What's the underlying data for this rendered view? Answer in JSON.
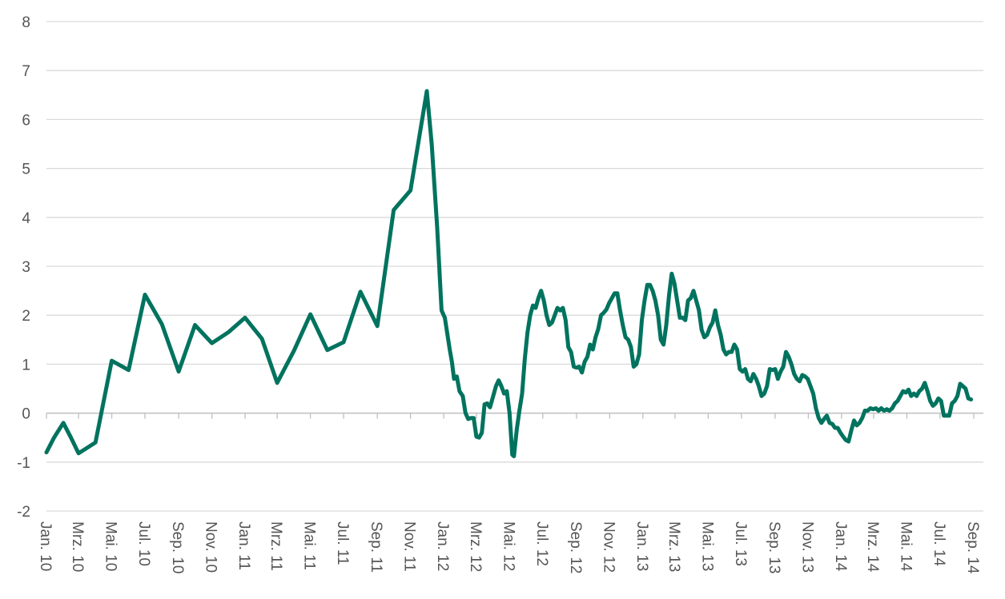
{
  "chart_data": {
    "type": "line",
    "title": "",
    "xlabel": "",
    "ylabel": "",
    "ylim": [
      -2,
      8
    ],
    "yticks": [
      -2,
      -1,
      0,
      1,
      2,
      3,
      4,
      5,
      6,
      7,
      8
    ],
    "grid": true,
    "legend": "none",
    "x_tick_labels": [
      "Jan. 10",
      "Mrz. 10",
      "Mai. 10",
      "Jul. 10",
      "Sep. 10",
      "Nov. 10",
      "Jan. 11",
      "Mrz. 11",
      "Mai. 11",
      "Jul. 11",
      "Sep. 11",
      "Nov. 11",
      "Jan. 12",
      "Mrz. 12",
      "Mai. 12",
      "Jul. 12",
      "Sep. 12",
      "Nov. 12",
      "Jan. 13",
      "Mrz. 13",
      "Mai. 13",
      "Jul. 13",
      "Sep. 13",
      "Nov. 13",
      "Jan. 14",
      "Mrz. 14",
      "Mai. 14",
      "Jul. 14",
      "Sep. 14"
    ],
    "series": [
      {
        "color": "#00735f",
        "points": [
          [
            "2010-01-01",
            -0.8
          ],
          [
            "2010-01-15",
            -0.5
          ],
          [
            "2010-02-01",
            -0.2
          ],
          [
            "2010-02-15",
            -0.5
          ],
          [
            "2010-03-01",
            -0.82
          ],
          [
            "2010-04-01",
            -0.6
          ],
          [
            "2010-05-01",
            1.07
          ],
          [
            "2010-06-01",
            0.88
          ],
          [
            "2010-07-01",
            2.42
          ],
          [
            "2010-08-01",
            1.82
          ],
          [
            "2010-09-01",
            0.85
          ],
          [
            "2010-10-01",
            1.8
          ],
          [
            "2010-11-01",
            1.43
          ],
          [
            "2010-12-01",
            1.65
          ],
          [
            "2011-01-01",
            1.95
          ],
          [
            "2011-02-01",
            1.52
          ],
          [
            "2011-03-01",
            0.62
          ],
          [
            "2011-04-01",
            1.28
          ],
          [
            "2011-05-01",
            2.02
          ],
          [
            "2011-06-01",
            1.29
          ],
          [
            "2011-07-01",
            1.45
          ],
          [
            "2011-08-01",
            2.48
          ],
          [
            "2011-09-01",
            1.78
          ],
          [
            "2011-10-01",
            4.15
          ],
          [
            "2011-11-01",
            4.55
          ],
          [
            "2011-12-01",
            6.58
          ],
          [
            "2011-12-10",
            5.5
          ],
          [
            "2011-12-20",
            3.8
          ],
          [
            "2011-12-28",
            2.1
          ],
          [
            "2012-01-03",
            1.95
          ],
          [
            "2012-01-08",
            1.6
          ],
          [
            "2012-01-12",
            1.3
          ],
          [
            "2012-01-16",
            1.05
          ],
          [
            "2012-01-20",
            0.7
          ],
          [
            "2012-01-25",
            0.75
          ],
          [
            "2012-01-30",
            0.45
          ],
          [
            "2012-02-05",
            0.35
          ],
          [
            "2012-02-10",
            0.0
          ],
          [
            "2012-02-15",
            -0.12
          ],
          [
            "2012-02-20",
            -0.1
          ],
          [
            "2012-02-25",
            -0.1
          ],
          [
            "2012-03-01",
            -0.48
          ],
          [
            "2012-03-06",
            -0.5
          ],
          [
            "2012-03-11",
            -0.4
          ],
          [
            "2012-03-16",
            0.18
          ],
          [
            "2012-03-21",
            0.2
          ],
          [
            "2012-03-26",
            0.12
          ],
          [
            "2012-04-01",
            0.35
          ],
          [
            "2012-04-06",
            0.55
          ],
          [
            "2012-04-11",
            0.67
          ],
          [
            "2012-04-16",
            0.55
          ],
          [
            "2012-04-21",
            0.4
          ],
          [
            "2012-04-26",
            0.45
          ],
          [
            "2012-05-01",
            0.0
          ],
          [
            "2012-05-06",
            -0.85
          ],
          [
            "2012-05-09",
            -0.88
          ],
          [
            "2012-05-14",
            -0.35
          ],
          [
            "2012-05-19",
            0.05
          ],
          [
            "2012-05-24",
            0.4
          ],
          [
            "2012-05-29",
            1.1
          ],
          [
            "2012-06-03",
            1.65
          ],
          [
            "2012-06-08",
            2.0
          ],
          [
            "2012-06-13",
            2.2
          ],
          [
            "2012-06-18",
            2.15
          ],
          [
            "2012-06-23",
            2.35
          ],
          [
            "2012-06-28",
            2.5
          ],
          [
            "2012-07-03",
            2.3
          ],
          [
            "2012-07-08",
            2.0
          ],
          [
            "2012-07-13",
            1.8
          ],
          [
            "2012-07-18",
            1.85
          ],
          [
            "2012-07-23",
            2.0
          ],
          [
            "2012-07-28",
            2.15
          ],
          [
            "2012-08-02",
            2.1
          ],
          [
            "2012-08-07",
            2.15
          ],
          [
            "2012-08-12",
            1.9
          ],
          [
            "2012-08-17",
            1.35
          ],
          [
            "2012-08-22",
            1.25
          ],
          [
            "2012-08-27",
            0.95
          ],
          [
            "2012-09-01",
            0.93
          ],
          [
            "2012-09-06",
            0.95
          ],
          [
            "2012-09-11",
            0.83
          ],
          [
            "2012-09-16",
            1.05
          ],
          [
            "2012-09-21",
            1.15
          ],
          [
            "2012-09-26",
            1.4
          ],
          [
            "2012-10-01",
            1.3
          ],
          [
            "2012-10-06",
            1.55
          ],
          [
            "2012-10-11",
            1.72
          ],
          [
            "2012-10-16",
            2.0
          ],
          [
            "2012-10-21",
            2.05
          ],
          [
            "2012-10-26",
            2.12
          ],
          [
            "2012-10-31",
            2.25
          ],
          [
            "2012-11-05",
            2.35
          ],
          [
            "2012-11-10",
            2.45
          ],
          [
            "2012-11-15",
            2.45
          ],
          [
            "2012-11-20",
            2.1
          ],
          [
            "2012-11-25",
            1.8
          ],
          [
            "2012-11-30",
            1.55
          ],
          [
            "2012-12-05",
            1.5
          ],
          [
            "2012-12-10",
            1.35
          ],
          [
            "2012-12-15",
            0.95
          ],
          [
            "2012-12-20",
            1.0
          ],
          [
            "2012-12-25",
            1.2
          ],
          [
            "2012-12-30",
            1.9
          ],
          [
            "2013-01-04",
            2.3
          ],
          [
            "2013-01-09",
            2.62
          ],
          [
            "2013-01-14",
            2.62
          ],
          [
            "2013-01-19",
            2.5
          ],
          [
            "2013-01-24",
            2.3
          ],
          [
            "2013-01-29",
            2.0
          ],
          [
            "2013-02-03",
            1.5
          ],
          [
            "2013-02-08",
            1.4
          ],
          [
            "2013-02-13",
            1.8
          ],
          [
            "2013-02-18",
            2.4
          ],
          [
            "2013-02-23",
            2.85
          ],
          [
            "2013-02-28",
            2.65
          ],
          [
            "2013-03-05",
            2.3
          ],
          [
            "2013-03-10",
            1.95
          ],
          [
            "2013-03-15",
            1.95
          ],
          [
            "2013-03-20",
            1.9
          ],
          [
            "2013-03-25",
            2.3
          ],
          [
            "2013-03-30",
            2.35
          ],
          [
            "2013-04-04",
            2.5
          ],
          [
            "2013-04-09",
            2.3
          ],
          [
            "2013-04-14",
            2.1
          ],
          [
            "2013-04-19",
            1.7
          ],
          [
            "2013-04-24",
            1.55
          ],
          [
            "2013-04-29",
            1.6
          ],
          [
            "2013-05-04",
            1.75
          ],
          [
            "2013-05-09",
            1.85
          ],
          [
            "2013-05-14",
            2.1
          ],
          [
            "2013-05-19",
            1.8
          ],
          [
            "2013-05-24",
            1.6
          ],
          [
            "2013-05-29",
            1.3
          ],
          [
            "2013-06-03",
            1.2
          ],
          [
            "2013-06-08",
            1.25
          ],
          [
            "2013-06-13",
            1.25
          ],
          [
            "2013-06-18",
            1.4
          ],
          [
            "2013-06-23",
            1.3
          ],
          [
            "2013-06-28",
            0.9
          ],
          [
            "2013-07-03",
            0.85
          ],
          [
            "2013-07-08",
            0.9
          ],
          [
            "2013-07-13",
            0.7
          ],
          [
            "2013-07-18",
            0.65
          ],
          [
            "2013-07-23",
            0.8
          ],
          [
            "2013-07-28",
            0.7
          ],
          [
            "2013-08-02",
            0.55
          ],
          [
            "2013-08-07",
            0.35
          ],
          [
            "2013-08-12",
            0.4
          ],
          [
            "2013-08-17",
            0.55
          ],
          [
            "2013-08-22",
            0.9
          ],
          [
            "2013-08-27",
            0.88
          ],
          [
            "2013-09-01",
            0.9
          ],
          [
            "2013-09-06",
            0.7
          ],
          [
            "2013-09-11",
            0.85
          ],
          [
            "2013-09-16",
            0.95
          ],
          [
            "2013-09-21",
            1.25
          ],
          [
            "2013-09-26",
            1.15
          ],
          [
            "2013-10-01",
            1.0
          ],
          [
            "2013-10-06",
            0.8
          ],
          [
            "2013-10-11",
            0.7
          ],
          [
            "2013-10-16",
            0.65
          ],
          [
            "2013-10-21",
            0.78
          ],
          [
            "2013-10-26",
            0.75
          ],
          [
            "2013-10-31",
            0.7
          ],
          [
            "2013-11-05",
            0.55
          ],
          [
            "2013-11-10",
            0.4
          ],
          [
            "2013-11-15",
            0.1
          ],
          [
            "2013-11-20",
            -0.1
          ],
          [
            "2013-11-25",
            -0.2
          ],
          [
            "2013-11-30",
            -0.12
          ],
          [
            "2013-12-05",
            -0.05
          ],
          [
            "2013-12-10",
            -0.2
          ],
          [
            "2013-12-15",
            -0.22
          ],
          [
            "2013-12-20",
            -0.3
          ],
          [
            "2013-12-25",
            -0.3
          ],
          [
            "2013-12-30",
            -0.4
          ],
          [
            "2014-01-04",
            -0.48
          ],
          [
            "2014-01-09",
            -0.55
          ],
          [
            "2014-01-14",
            -0.58
          ],
          [
            "2014-01-19",
            -0.35
          ],
          [
            "2014-01-24",
            -0.15
          ],
          [
            "2014-01-29",
            -0.25
          ],
          [
            "2014-02-03",
            -0.2
          ],
          [
            "2014-02-08",
            -0.1
          ],
          [
            "2014-02-13",
            0.05
          ],
          [
            "2014-02-18",
            0.05
          ],
          [
            "2014-02-23",
            0.1
          ],
          [
            "2014-02-28",
            0.08
          ],
          [
            "2014-03-05",
            0.1
          ],
          [
            "2014-03-10",
            0.05
          ],
          [
            "2014-03-15",
            0.1
          ],
          [
            "2014-03-20",
            0.05
          ],
          [
            "2014-03-25",
            0.08
          ],
          [
            "2014-03-30",
            0.05
          ],
          [
            "2014-04-04",
            0.1
          ],
          [
            "2014-04-09",
            0.2
          ],
          [
            "2014-04-14",
            0.25
          ],
          [
            "2014-04-19",
            0.35
          ],
          [
            "2014-04-24",
            0.45
          ],
          [
            "2014-04-29",
            0.42
          ],
          [
            "2014-05-04",
            0.48
          ],
          [
            "2014-05-09",
            0.35
          ],
          [
            "2014-05-14",
            0.4
          ],
          [
            "2014-05-19",
            0.35
          ],
          [
            "2014-05-24",
            0.45
          ],
          [
            "2014-05-29",
            0.5
          ],
          [
            "2014-06-03",
            0.62
          ],
          [
            "2014-06-08",
            0.45
          ],
          [
            "2014-06-13",
            0.25
          ],
          [
            "2014-06-18",
            0.15
          ],
          [
            "2014-06-23",
            0.2
          ],
          [
            "2014-06-28",
            0.3
          ],
          [
            "2014-07-03",
            0.25
          ],
          [
            "2014-07-08",
            -0.05
          ],
          [
            "2014-07-13",
            -0.05
          ],
          [
            "2014-07-18",
            -0.05
          ],
          [
            "2014-07-23",
            0.2
          ],
          [
            "2014-07-28",
            0.25
          ],
          [
            "2014-08-02",
            0.35
          ],
          [
            "2014-08-07",
            0.6
          ],
          [
            "2014-08-12",
            0.55
          ],
          [
            "2014-08-17",
            0.5
          ],
          [
            "2014-08-22",
            0.3
          ],
          [
            "2014-08-27",
            0.28
          ]
        ]
      }
    ]
  }
}
